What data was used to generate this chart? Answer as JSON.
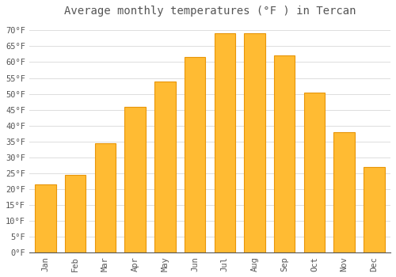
{
  "title": "Average monthly temperatures (°F ) in Tercan",
  "months": [
    "Jan",
    "Feb",
    "Mar",
    "Apr",
    "May",
    "Jun",
    "Jul",
    "Aug",
    "Sep",
    "Oct",
    "Nov",
    "Dec"
  ],
  "values": [
    21.5,
    24.5,
    34.5,
    46.0,
    54.0,
    61.5,
    69.0,
    69.0,
    62.0,
    50.5,
    38.0,
    27.0
  ],
  "bar_color": "#FFBB33",
  "bar_edge_color": "#E8960A",
  "background_color": "#FFFFFF",
  "grid_color": "#DDDDDD",
  "text_color": "#555555",
  "ylim": [
    0,
    73
  ],
  "yticks": [
    0,
    5,
    10,
    15,
    20,
    25,
    30,
    35,
    40,
    45,
    50,
    55,
    60,
    65,
    70
  ],
  "title_fontsize": 10,
  "tick_fontsize": 7.5,
  "font_family": "monospace"
}
